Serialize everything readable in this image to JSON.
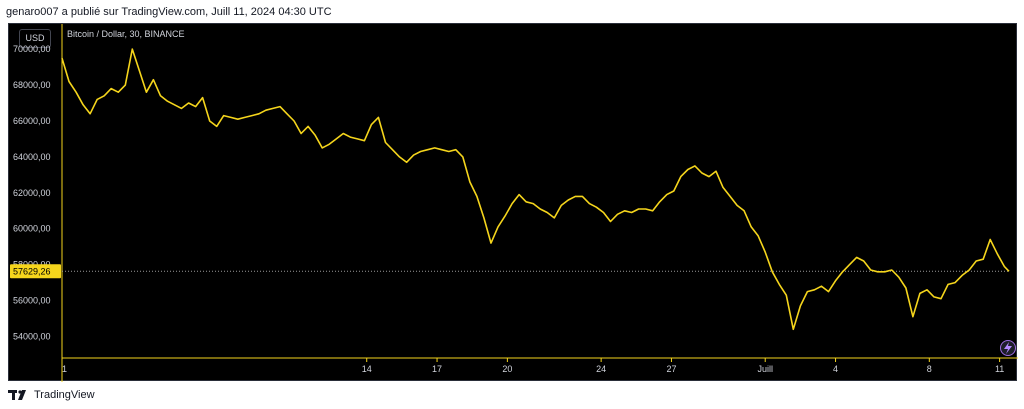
{
  "header": {
    "text": "genaro007 a publié sur TradingView.com, Juill 11, 2024 04:30 UTC"
  },
  "toolbar": {
    "currency": "USD",
    "symbol": "Bitcoin / Dollar, 30, BINANCE"
  },
  "footer": {
    "brand": "TradingView"
  },
  "colors": {
    "background": "#000000",
    "line": "#f5d51c",
    "axis_text": "#d1d4dc",
    "last_price_bg": "#f5d51c"
  },
  "chart_data": {
    "type": "line",
    "title": "Bitcoin / Dollar, 30, BINANCE",
    "xlabel": "",
    "ylabel": "",
    "grid": false,
    "ylim": [
      52800,
      71400
    ],
    "y_ticks": [
      54000,
      56000,
      58000,
      60000,
      62000,
      64000,
      66000,
      68000,
      70000
    ],
    "y_tick_labels": [
      "54000,00",
      "56000,00",
      "58000,00",
      "60000,00",
      "62000,00",
      "64000,00",
      "66000,00",
      "68000,00",
      "70000,00"
    ],
    "x_ticks": [
      0,
      13,
      16,
      19,
      23,
      26,
      30,
      33,
      37,
      40
    ],
    "x_tick_labels": [
      "1",
      "14",
      "17",
      "20",
      "24",
      "27",
      "Juill",
      "4",
      "8",
      "11"
    ],
    "last_price": 57629.26,
    "last_price_label": "57629,26",
    "series": [
      {
        "x": [
          0,
          0.3,
          0.6,
          0.9,
          1.2,
          1.5,
          1.8,
          2.1,
          2.4,
          2.7,
          3.0,
          3.3,
          3.6,
          3.9,
          4.2,
          4.5,
          4.8,
          5.1,
          5.4,
          5.7,
          6.0,
          6.3,
          6.6,
          6.9,
          7.2,
          7.5,
          7.8,
          8.1,
          8.4,
          8.7,
          9.0,
          9.3,
          9.6,
          9.9,
          10.2,
          10.5,
          10.8,
          11.1,
          11.4,
          11.7,
          12.0,
          12.3,
          12.6,
          12.9,
          13.2,
          13.5,
          13.8,
          14.1,
          14.4,
          14.7,
          15.0,
          15.3,
          15.6,
          15.9,
          16.2,
          16.5,
          16.8,
          17.1,
          17.4,
          17.7,
          18.0,
          18.3,
          18.6,
          18.9,
          19.2,
          19.5,
          19.8,
          20.1,
          20.4,
          20.7,
          21.0,
          21.3,
          21.6,
          21.9,
          22.2,
          22.5,
          22.8,
          23.1,
          23.4,
          23.7,
          24.0,
          24.3,
          24.6,
          24.9,
          25.2,
          25.5,
          25.8,
          26.1,
          26.4,
          26.7,
          27.0,
          27.3,
          27.6,
          27.9,
          28.2,
          28.5,
          28.8,
          29.1,
          29.4,
          29.7,
          30.0,
          30.3,
          30.6,
          30.9,
          31.2,
          31.5,
          31.8,
          32.1,
          32.4,
          32.7,
          33.0,
          33.3,
          33.6,
          33.9,
          34.2,
          34.5,
          34.8,
          35.1,
          35.4,
          35.7,
          36.0,
          36.3,
          36.6,
          36.9,
          37.2,
          37.5,
          37.8,
          38.1,
          38.4,
          38.7,
          39.0,
          39.3,
          39.6,
          39.9,
          40.2,
          40.4
        ],
        "values": [
          69500,
          68200,
          67600,
          66900,
          66400,
          67200,
          67400,
          67800,
          67600,
          68000,
          70000,
          68800,
          67600,
          68300,
          67400,
          67100,
          66900,
          66700,
          67000,
          66800,
          67300,
          66000,
          65700,
          66300,
          66200,
          66100,
          66200,
          66300,
          66400,
          66600,
          66700,
          66800,
          66400,
          66000,
          65300,
          65700,
          65200,
          64500,
          64700,
          65000,
          65300,
          65100,
          65000,
          64900,
          65800,
          66200,
          64800,
          64400,
          64000,
          63700,
          64100,
          64300,
          64400,
          64500,
          64400,
          64300,
          64400,
          64000,
          62600,
          61800,
          60600,
          59200,
          60100,
          60700,
          61400,
          61900,
          61500,
          61400,
          61100,
          60900,
          60600,
          61300,
          61600,
          61800,
          61800,
          61400,
          61200,
          60900,
          60400,
          60800,
          61000,
          60900,
          61100,
          61100,
          61000,
          61500,
          61900,
          62100,
          62900,
          63300,
          63500,
          63100,
          62900,
          63200,
          62300,
          61800,
          61300,
          61000,
          60100,
          59600,
          58700,
          57600,
          56900,
          56300,
          54400,
          55700,
          56500,
          56600,
          56800,
          56500,
          57100,
          57600,
          58000,
          58400,
          58200,
          57700,
          57600,
          57600,
          57700,
          57300,
          56700,
          55100,
          56400,
          56600,
          56200,
          56100,
          56900,
          57000,
          57400,
          57700,
          58200,
          58300,
          59400,
          58600,
          57900,
          57630
        ]
      }
    ]
  }
}
